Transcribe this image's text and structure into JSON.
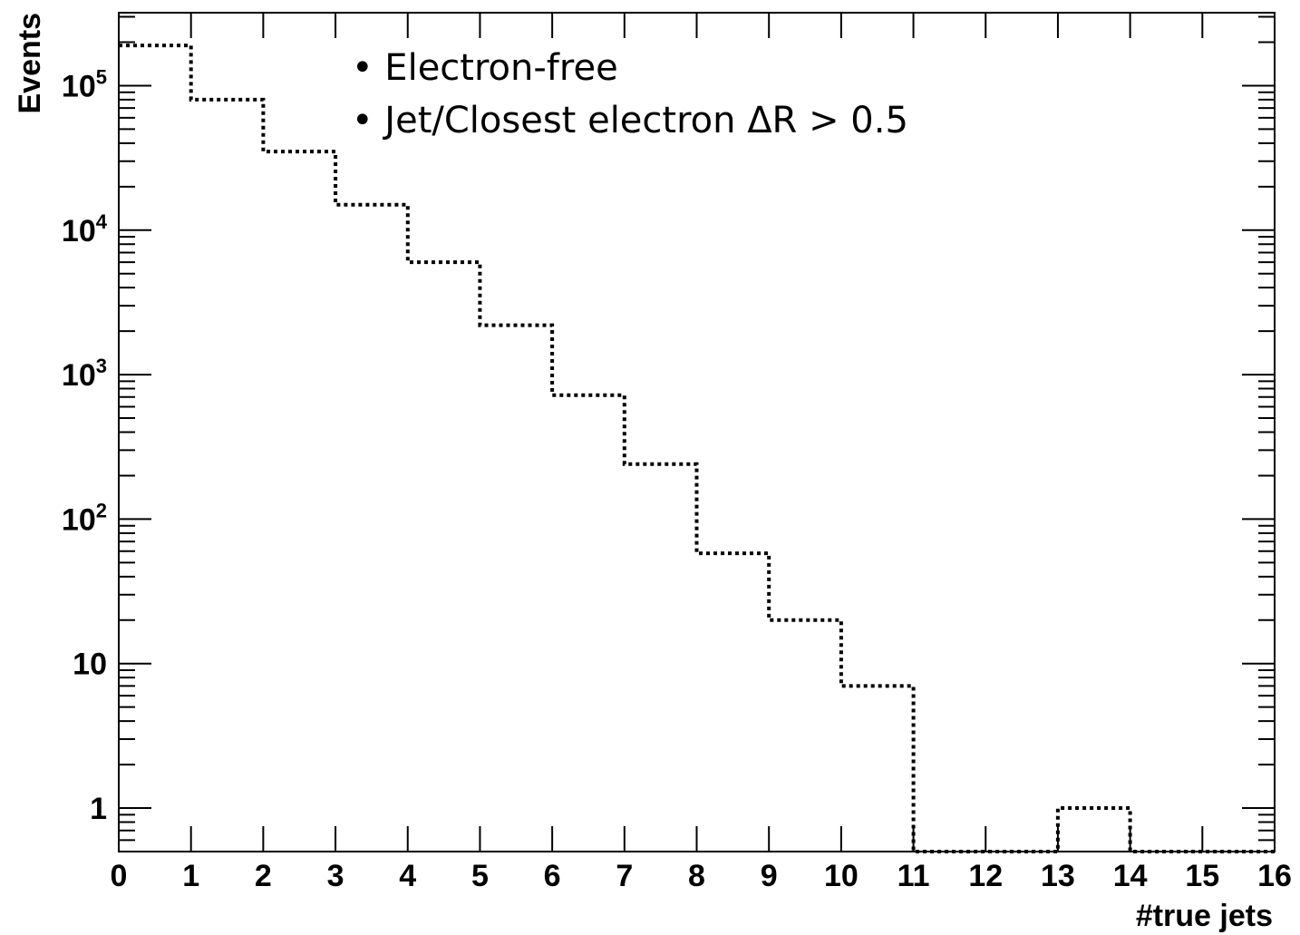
{
  "chart_data": {
    "type": "bar",
    "style": "step-histogram",
    "line_style": "dotted",
    "line_color": "#000000",
    "x_label": "#true jets",
    "y_label": "Events",
    "y_scale": "log",
    "xlim": [
      0,
      16
    ],
    "ylim": [
      0.5,
      320000
    ],
    "bin_edges": [
      0,
      1,
      2,
      3,
      4,
      5,
      6,
      7,
      8,
      9,
      10,
      11,
      12,
      13,
      14,
      15,
      16
    ],
    "values": [
      190000,
      80000,
      35000,
      15000,
      6000,
      2200,
      720,
      240,
      58,
      20,
      7,
      0,
      0,
      1,
      0,
      0
    ],
    "x_ticks": [
      "0",
      "1",
      "2",
      "3",
      "4",
      "5",
      "6",
      "7",
      "8",
      "9",
      "10",
      "11",
      "12",
      "13",
      "14",
      "15",
      "16"
    ],
    "y_ticks": [
      {
        "value": 1,
        "label": "1"
      },
      {
        "value": 10,
        "label": "10"
      },
      {
        "value": 100,
        "base": "10",
        "exp": "2"
      },
      {
        "value": 1000,
        "base": "10",
        "exp": "3"
      },
      {
        "value": 10000,
        "base": "10",
        "exp": "4"
      },
      {
        "value": 100000,
        "base": "10",
        "exp": "5"
      }
    ],
    "annotations": [
      "• Electron-free",
      "• Jet/Closest electron ΔR > 0.5"
    ]
  }
}
